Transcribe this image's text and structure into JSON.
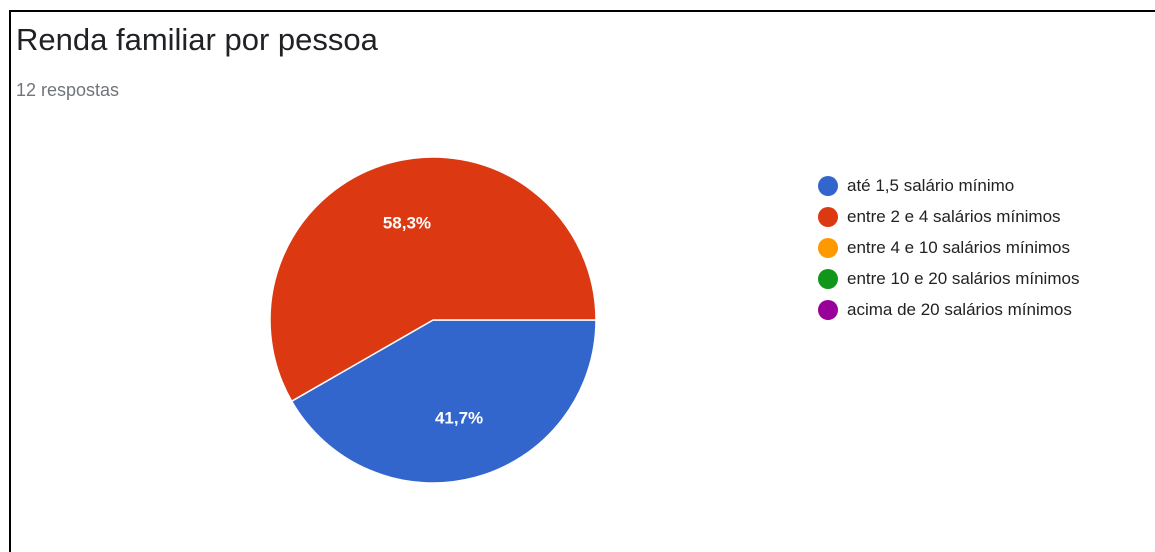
{
  "title": "Renda familiar por pessoa",
  "subtitle": "12 respostas",
  "chart_data": {
    "type": "pie",
    "title": "Renda familiar por pessoa",
    "categories": [
      "até 1,5 salário mínimo",
      "entre 2 e 4 salários mínimos",
      "entre 4 e 10 salários mínimos",
      "entre 10 e 20 salários mínimos",
      "acima de 20 salários mínimos"
    ],
    "values": [
      41.7,
      58.3,
      0,
      0,
      0
    ],
    "value_labels": [
      "41,7%",
      "58,3%",
      "",
      "",
      ""
    ],
    "colors": [
      "#3366cc",
      "#dc3912",
      "#ff9900",
      "#109618",
      "#990099"
    ],
    "legend_position": "right"
  }
}
